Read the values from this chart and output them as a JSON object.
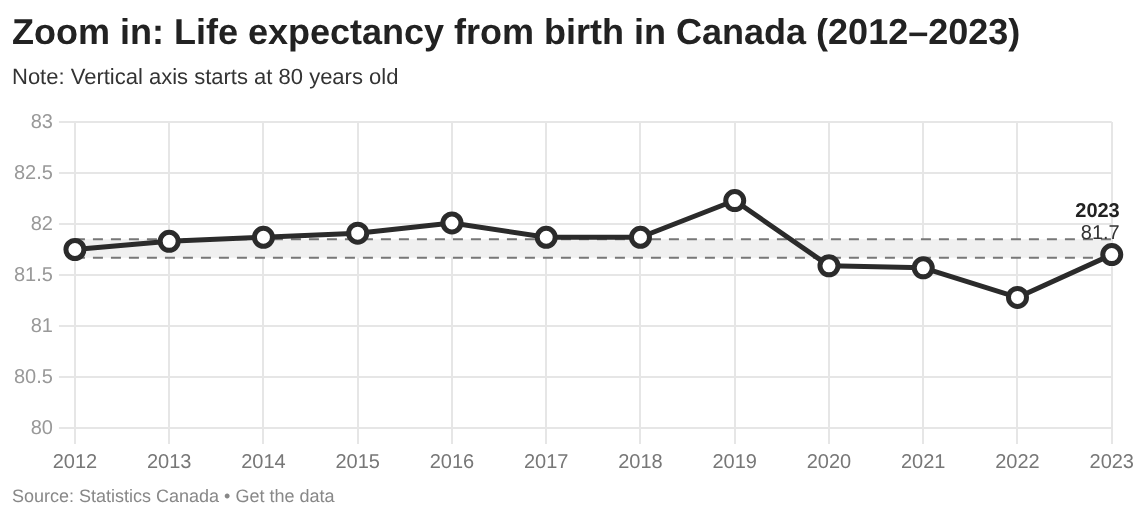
{
  "chart_data": {
    "type": "line",
    "title": "Zoom in: Life expectancy from birth in Canada (2012–2023)",
    "subtitle": "Note: Vertical axis starts at 80 years old",
    "categories": [
      "2012",
      "2013",
      "2014",
      "2015",
      "2016",
      "2017",
      "2018",
      "2019",
      "2020",
      "2021",
      "2022",
      "2023"
    ],
    "series": [
      {
        "color": "#2b2b2b",
        "values": [
          81.75,
          81.83,
          81.87,
          81.91,
          82.01,
          81.87,
          81.87,
          82.23,
          81.59,
          81.57,
          81.28,
          81.7
        ],
        "value_labels": [
          null,
          null,
          null,
          null,
          null,
          null,
          null,
          null,
          null,
          null,
          null,
          "81.7"
        ]
      }
    ],
    "ylim": [
      80,
      83
    ],
    "yticks": [
      80,
      80.5,
      81,
      81.5,
      82,
      82.5,
      83
    ],
    "grid": true,
    "legend": false,
    "marker": "circle",
    "line_style": "solid",
    "bands": [
      {
        "axis": "y",
        "from": 81.67,
        "to": 81.85,
        "color": "#f0f0f0"
      }
    ],
    "ref_lines": [
      {
        "axis": "y",
        "value": 81.67,
        "color": "#777777",
        "line_style": "dashed"
      },
      {
        "axis": "y",
        "value": 81.85,
        "color": "#777777",
        "line_style": "dashed"
      }
    ],
    "annotations": [
      {
        "text": "2023",
        "x": "2023",
        "y": 81.7
      },
      "Source: Statistics Canada • Get the data"
    ]
  }
}
